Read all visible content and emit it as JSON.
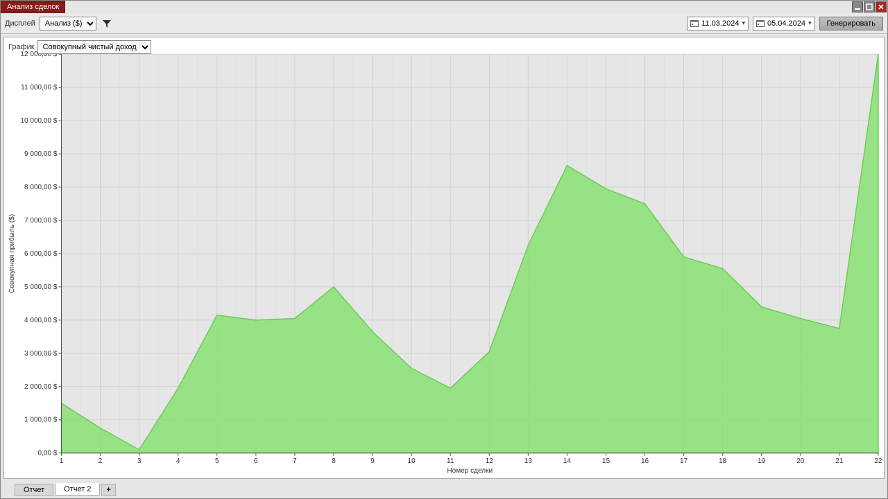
{
  "window": {
    "title": "Анализ сделок"
  },
  "toolbar": {
    "display_label": "Дисплей",
    "display_value": "Анализ ($)",
    "date_from": "11.03.2024",
    "date_to": "05.04.2024",
    "generate_label": "Генерировать"
  },
  "chart_controls": {
    "chart_label": "График",
    "chart_type_value": "Совокупный чистый доход"
  },
  "chart": {
    "type": "area",
    "x_label": "Номер сделки",
    "y_label": "Совокупная прибыль ($)",
    "y_min": 0,
    "y_max": 12000,
    "y_tick_step": 1000,
    "y_tick_suffix": ",00 $",
    "x_categories": [
      1,
      2,
      3,
      4,
      5,
      6,
      7,
      8,
      9,
      10,
      11,
      12,
      13,
      14,
      15,
      16,
      17,
      18,
      19,
      20,
      21,
      22
    ],
    "values": [
      1500,
      750,
      100,
      1950,
      4150,
      4000,
      4050,
      5000,
      3650,
      2550,
      1950,
      3050,
      6250,
      8650,
      7950,
      7500,
      5900,
      5550,
      4400,
      4050,
      3750,
      12000
    ],
    "fill_color": "#89e074",
    "fill_opacity": 0.85,
    "line_color": "#6fc95a",
    "line_width": 1.5,
    "plot_background": "#e6e6e6",
    "grid_color_major": "#d0d0d0",
    "grid_color_minor": "#e0e0e0",
    "axis_color": "#555",
    "label_fontsize": 10,
    "tick_fontsize": 10
  },
  "tabs": {
    "tab1": "Отчет",
    "tab2": "Отчет 2",
    "add": "+"
  }
}
